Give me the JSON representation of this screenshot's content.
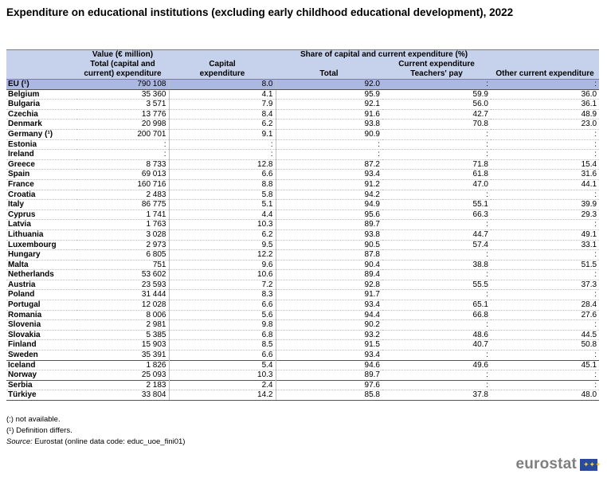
{
  "title": "Expenditure on educational institutions (excluding early childhood educational development), 2022",
  "header": {
    "value_group": "Value (€ million)",
    "share_group": "Share of capital and current expenditure (%)",
    "total_line1": "Total (capital and",
    "total_line2": "current) expenditure",
    "capital_line1": "Capital",
    "capital_line2": "expenditure",
    "current_group": "Current expenditure",
    "total": "Total",
    "teachers_pay": "Teachers' pay",
    "other_current": "Other current expenditure"
  },
  "rows": [
    {
      "country": "EU (¹)",
      "value": "790 108",
      "capital": "8.0",
      "total": "92.0",
      "teachers": ":",
      "other": ":"
    },
    {
      "country": "Belgium",
      "value": "35 360",
      "capital": "4.1",
      "total": "95.9",
      "teachers": "59.9",
      "other": "36.0"
    },
    {
      "country": "Bulgaria",
      "value": "3 571",
      "capital": "7.9",
      "total": "92.1",
      "teachers": "56.0",
      "other": "36.1"
    },
    {
      "country": "Czechia",
      "value": "13 776",
      "capital": "8.4",
      "total": "91.6",
      "teachers": "42.7",
      "other": "48.9"
    },
    {
      "country": "Denmark",
      "value": "20 998",
      "capital": "6.2",
      "total": "93.8",
      "teachers": "70.8",
      "other": "23.0"
    },
    {
      "country": "Germany (¹)",
      "value": "200 701",
      "capital": "9.1",
      "total": "90.9",
      "teachers": ":",
      "other": ":"
    },
    {
      "country": "Estonia",
      "value": ":",
      "capital": ":",
      "total": ":",
      "teachers": ":",
      "other": ":"
    },
    {
      "country": "Ireland",
      "value": ":",
      "capital": ":",
      "total": ":",
      "teachers": ":",
      "other": ":"
    },
    {
      "country": "Greece",
      "value": "8 733",
      "capital": "12.8",
      "total": "87.2",
      "teachers": "71.8",
      "other": "15.4"
    },
    {
      "country": "Spain",
      "value": "69 013",
      "capital": "6.6",
      "total": "93.4",
      "teachers": "61.8",
      "other": "31.6"
    },
    {
      "country": "France",
      "value": "160 716",
      "capital": "8.8",
      "total": "91.2",
      "teachers": "47.0",
      "other": "44.1"
    },
    {
      "country": "Croatia",
      "value": "2 483",
      "capital": "5.8",
      "total": "94.2",
      "teachers": ":",
      "other": ":"
    },
    {
      "country": "Italy",
      "value": "86 775",
      "capital": "5.1",
      "total": "94.9",
      "teachers": "55.1",
      "other": "39.9"
    },
    {
      "country": "Cyprus",
      "value": "1 741",
      "capital": "4.4",
      "total": "95.6",
      "teachers": "66.3",
      "other": "29.3"
    },
    {
      "country": "Latvia",
      "value": "1 763",
      "capital": "10.3",
      "total": "89.7",
      "teachers": ":",
      "other": ":"
    },
    {
      "country": "Lithuania",
      "value": "3 028",
      "capital": "6.2",
      "total": "93.8",
      "teachers": "44.7",
      "other": "49.1"
    },
    {
      "country": "Luxembourg",
      "value": "2 973",
      "capital": "9.5",
      "total": "90.5",
      "teachers": "57.4",
      "other": "33.1"
    },
    {
      "country": "Hungary",
      "value": "6 805",
      "capital": "12.2",
      "total": "87.8",
      "teachers": ":",
      "other": ":"
    },
    {
      "country": "Malta",
      "value": "751",
      "capital": "9.6",
      "total": "90.4",
      "teachers": "38.8",
      "other": "51.5"
    },
    {
      "country": "Netherlands",
      "value": "53 602",
      "capital": "10.6",
      "total": "89.4",
      "teachers": ":",
      "other": ":"
    },
    {
      "country": "Austria",
      "value": "23 593",
      "capital": "7.2",
      "total": "92.8",
      "teachers": "55.5",
      "other": "37.3"
    },
    {
      "country": "Poland",
      "value": "31 444",
      "capital": "8.3",
      "total": "91.7",
      "teachers": ":",
      "other": ":"
    },
    {
      "country": "Portugal",
      "value": "12 028",
      "capital": "6.6",
      "total": "93.4",
      "teachers": "65.1",
      "other": "28.4"
    },
    {
      "country": "Romania",
      "value": "8 006",
      "capital": "5.6",
      "total": "94.4",
      "teachers": "66.8",
      "other": "27.6"
    },
    {
      "country": "Slovenia",
      "value": "2 981",
      "capital": "9.8",
      "total": "90.2",
      "teachers": ":",
      "other": ":"
    },
    {
      "country": "Slovakia",
      "value": "5 385",
      "capital": "6.8",
      "total": "93.2",
      "teachers": "48.6",
      "other": "44.5"
    },
    {
      "country": "Finland",
      "value": "15 903",
      "capital": "8.5",
      "total": "91.5",
      "teachers": "40.7",
      "other": "50.8"
    },
    {
      "country": "Sweden",
      "value": "35 391",
      "capital": "6.6",
      "total": "93.4",
      "teachers": ":",
      "other": ":"
    },
    {
      "country": "Iceland",
      "value": "1 826",
      "capital": "5.4",
      "total": "94.6",
      "teachers": "49.6",
      "other": "45.1"
    },
    {
      "country": "Norway",
      "value": "25 093",
      "capital": "10.3",
      "total": "89.7",
      "teachers": ":",
      "other": ":"
    },
    {
      "country": "Serbia",
      "value": "2 183",
      "capital": "2.4",
      "total": "97.6",
      "teachers": ":",
      "other": ":"
    },
    {
      "country": "Türkiye",
      "value": "33 804",
      "capital": "14.2",
      "total": "85.8",
      "teachers": "37.8",
      "other": "48.0"
    }
  ],
  "footnotes": {
    "not_available": "(:) not available.",
    "definition": "(¹) Definition differs.",
    "source_label": "Source:",
    "source_text": " Eurostat (online data code: educ_uoe_fini01)"
  },
  "logo": {
    "text": "eurostat",
    "icon": "eu-flag-icon"
  }
}
